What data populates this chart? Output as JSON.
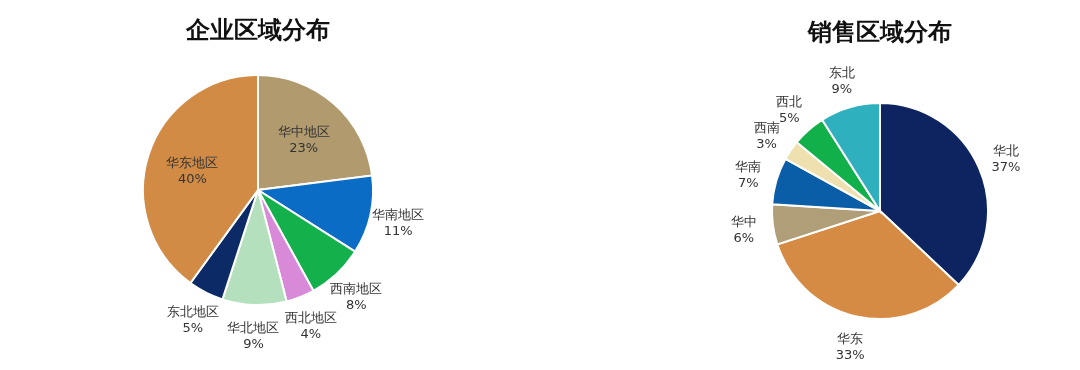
{
  "chart_data": [
    {
      "type": "pie",
      "title": "企业区域分布",
      "categories": [
        "华中地区",
        "华南地区",
        "西南地区",
        "西北地区",
        "华北地区",
        "东北地区",
        "华东地区"
      ],
      "values": [
        23,
        11,
        8,
        4,
        9,
        5,
        40
      ],
      "value_labels": [
        "23%",
        "11%",
        "8%",
        "4%",
        "9%",
        "5%",
        "40%"
      ],
      "colors": [
        "#b09a6e",
        "#0a6cc4",
        "#13b04b",
        "#d88ad8",
        "#b5e0bd",
        "#0c2a66",
        "#d18b45"
      ]
    },
    {
      "type": "pie",
      "title": "销售区域分布",
      "categories": [
        "华北",
        "华东",
        "华中",
        "华南",
        "西南",
        "西北",
        "东北"
      ],
      "values": [
        37,
        33,
        6,
        7,
        3,
        5,
        9
      ],
      "value_labels": [
        "37%",
        "33%",
        "6%",
        "7%",
        "3%",
        "5%",
        "9%"
      ],
      "colors": [
        "#0d2460",
        "#d68b44",
        "#b09e78",
        "#0a5ea8",
        "#efe0b0",
        "#12b04b",
        "#2fb0be"
      ]
    }
  ]
}
